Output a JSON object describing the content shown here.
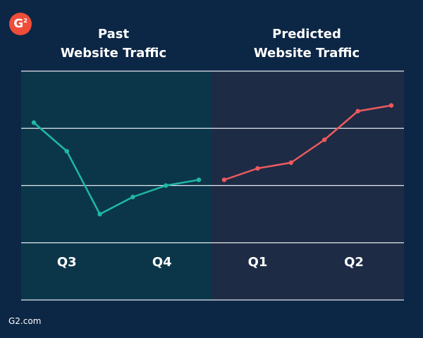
{
  "logo": {
    "text": "G",
    "superscript": "2",
    "color": "#ef4d3a"
  },
  "footer": {
    "source": "G2.com"
  },
  "colors": {
    "background": "#0c2645",
    "past_panel": "#0b364a",
    "predicted_panel": "#1d2b45",
    "grid": "#e6eaef",
    "past_line": "#1fb8a4",
    "predicted_line": "#ec5a5e",
    "text": "#ffffff"
  },
  "chart_data": {
    "type": "line",
    "title": "",
    "panels": [
      {
        "title_lines": [
          "Past",
          "Website Traffic"
        ],
        "tick_labels": [
          "Q3",
          "Q4"
        ]
      },
      {
        "title_lines": [
          "Predicted",
          "Website Traffic"
        ],
        "tick_labels": [
          "Q1",
          "Q2"
        ]
      }
    ],
    "series": [
      {
        "name": "",
        "panel": 0,
        "values": [
          3.1,
          2.6,
          1.5,
          1.8,
          2.0,
          2.1
        ]
      },
      {
        "name": "",
        "panel": 1,
        "values": [
          2.1,
          2.3,
          2.4,
          2.8,
          3.3,
          3.4
        ]
      }
    ],
    "ylim": [
      0,
      4
    ],
    "y_ticks": [
      0,
      1,
      2,
      3,
      4
    ],
    "y_tick_labels_shown": false,
    "grid": true,
    "legend": "none"
  }
}
